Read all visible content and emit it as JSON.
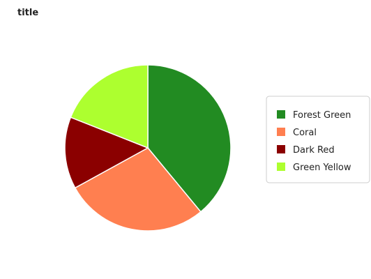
{
  "chart_data": {
    "type": "pie",
    "title": "title",
    "categories": [
      "Forest Green",
      "Coral",
      "Dark Red",
      "Green Yellow"
    ],
    "values": [
      39,
      28,
      14,
      19
    ],
    "colors": [
      "#228b22",
      "#ff7f50",
      "#8b0000",
      "#adff2f"
    ],
    "legend_position": "right"
  }
}
